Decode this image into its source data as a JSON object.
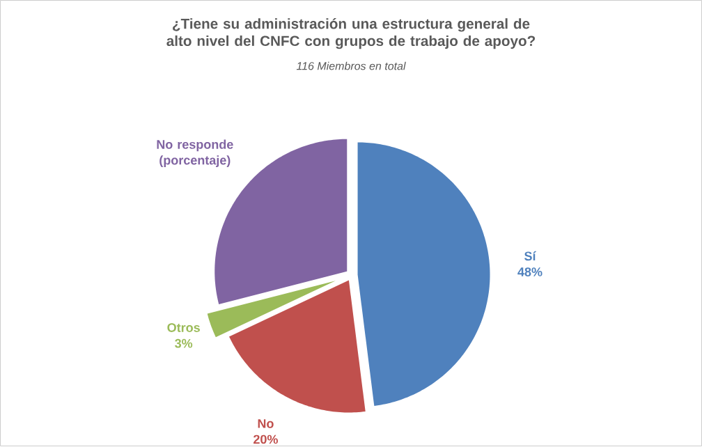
{
  "chart_data": {
    "type": "pie",
    "title": "¿Tiene su administración una estructura general de alto nivel del CNFC con grupos de trabajo de apoyo?",
    "subtitle": "116 Miembros en total",
    "categories": [
      "Sí",
      "No",
      "Otros",
      "No responde (porcentaje)"
    ],
    "values": [
      48,
      20,
      3,
      29
    ],
    "colors": [
      "#4f81bd",
      "#c0504d",
      "#9bbb59",
      "#8064a2"
    ],
    "value_labels": [
      "48%",
      "20%",
      "3%",
      null
    ]
  }
}
